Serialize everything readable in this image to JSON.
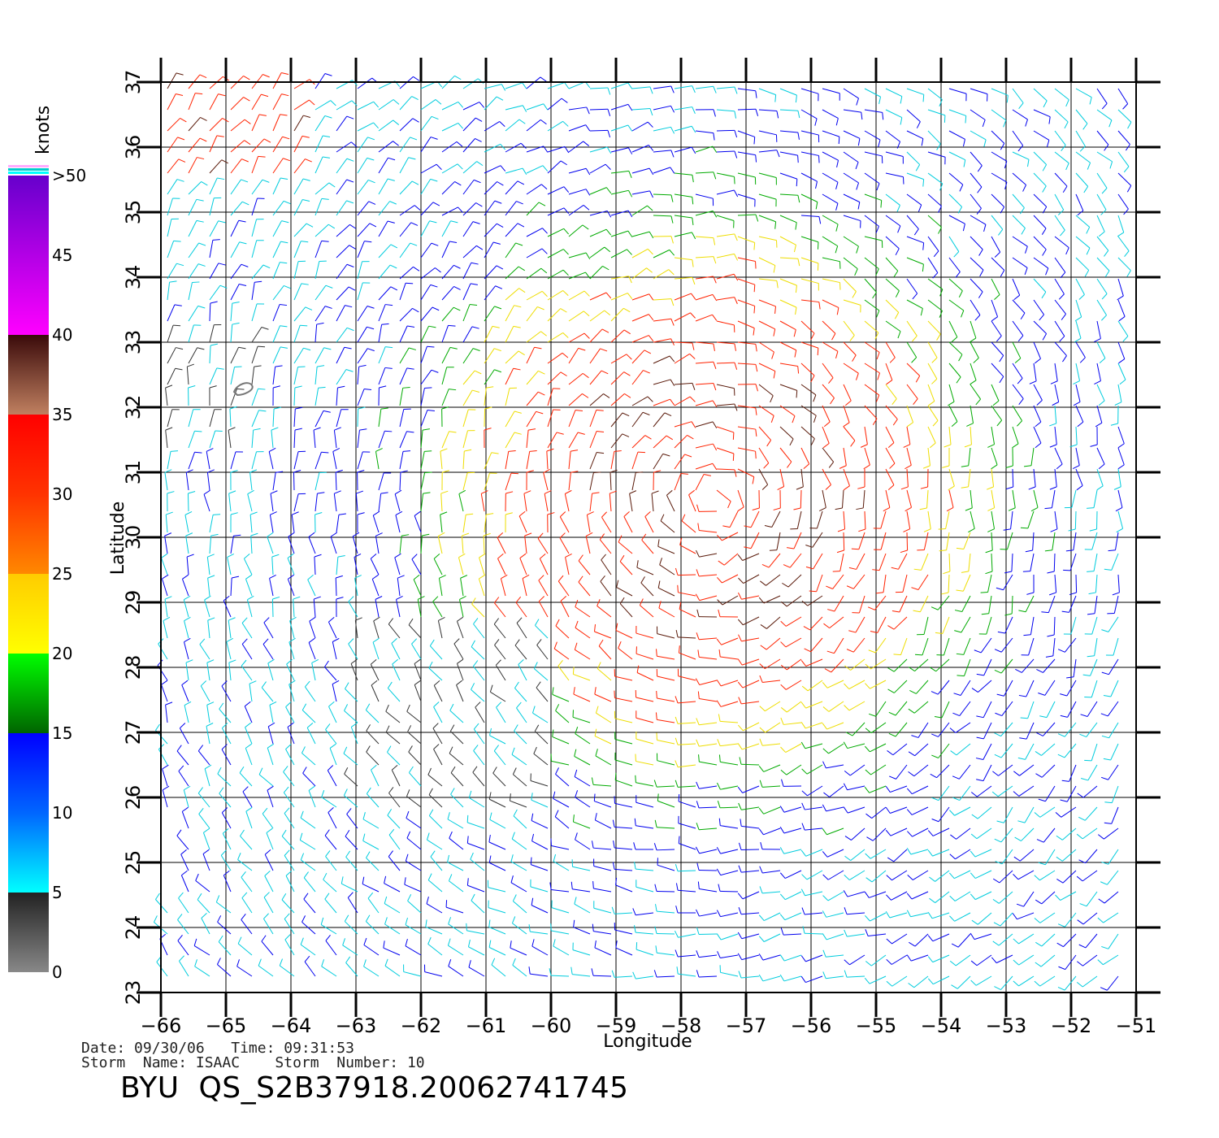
{
  "map": {
    "xlabel": "Longitude",
    "ylabel": "Latitude",
    "lon_ticks": [
      -66,
      -65,
      -64,
      -63,
      -62,
      -61,
      -60,
      -59,
      -58,
      -57,
      -56,
      -55,
      -54,
      -53,
      -52,
      -51
    ],
    "lon_labels": [
      "−66",
      "−65",
      "−64",
      "−63",
      "−62",
      "−61",
      "−60",
      "−59",
      "−58",
      "−57",
      "−56",
      "−55",
      "−54",
      "−53",
      "−52",
      "−51"
    ],
    "lat_ticks": [
      23,
      24,
      25,
      26,
      27,
      28,
      29,
      30,
      31,
      32,
      33,
      34,
      35,
      36,
      37
    ],
    "lat_labels": [
      "23",
      "24",
      "25",
      "26",
      "27",
      "28",
      "29",
      "30",
      "31",
      "32",
      "33",
      "34",
      "35",
      "36",
      "37"
    ],
    "lon_range": [
      -66,
      -51
    ],
    "lat_range": [
      23,
      37
    ],
    "grid": true,
    "storm_center": {
      "lon": -57.5,
      "lat": 30.6
    }
  },
  "colorbar": {
    "title": "knots",
    "labels": [
      "0",
      "5",
      "10",
      "15",
      "20",
      "25",
      "30",
      "35",
      "40",
      "45",
      ">50"
    ],
    "values": [
      0,
      5,
      10,
      15,
      20,
      25,
      30,
      35,
      40,
      45,
      50
    ],
    "segments": [
      {
        "from": 0,
        "to": 5,
        "colors": [
          "#888888",
          "#222222"
        ]
      },
      {
        "from": 5,
        "to": 15,
        "colors": [
          "#00ffff",
          "#0066ff",
          "#0000ff"
        ]
      },
      {
        "from": 15,
        "to": 20,
        "colors": [
          "#006400",
          "#00ff00"
        ]
      },
      {
        "from": 20,
        "to": 25,
        "colors": [
          "#ffff00",
          "#ffcc00"
        ]
      },
      {
        "from": 25,
        "to": 35,
        "colors": [
          "#ff8800",
          "#ff3300",
          "#ff0000"
        ]
      },
      {
        "from": 35,
        "to": 40,
        "colors": [
          "#c08060",
          "#3a0a0a"
        ]
      },
      {
        "from": 40,
        "to": 50,
        "colors": [
          "#ff00ff",
          "#6600cc"
        ]
      }
    ],
    "top_lines": [
      "#ffaaff",
      "#00cccc",
      "#00ffff"
    ]
  },
  "info": {
    "line1": "Date: 09/30/06   Time: 09:31:53",
    "line2": "Storm  Name: ISAAC    Storm  Number: 10",
    "product": "BYU  QS_S2B37918.20062741745"
  }
}
